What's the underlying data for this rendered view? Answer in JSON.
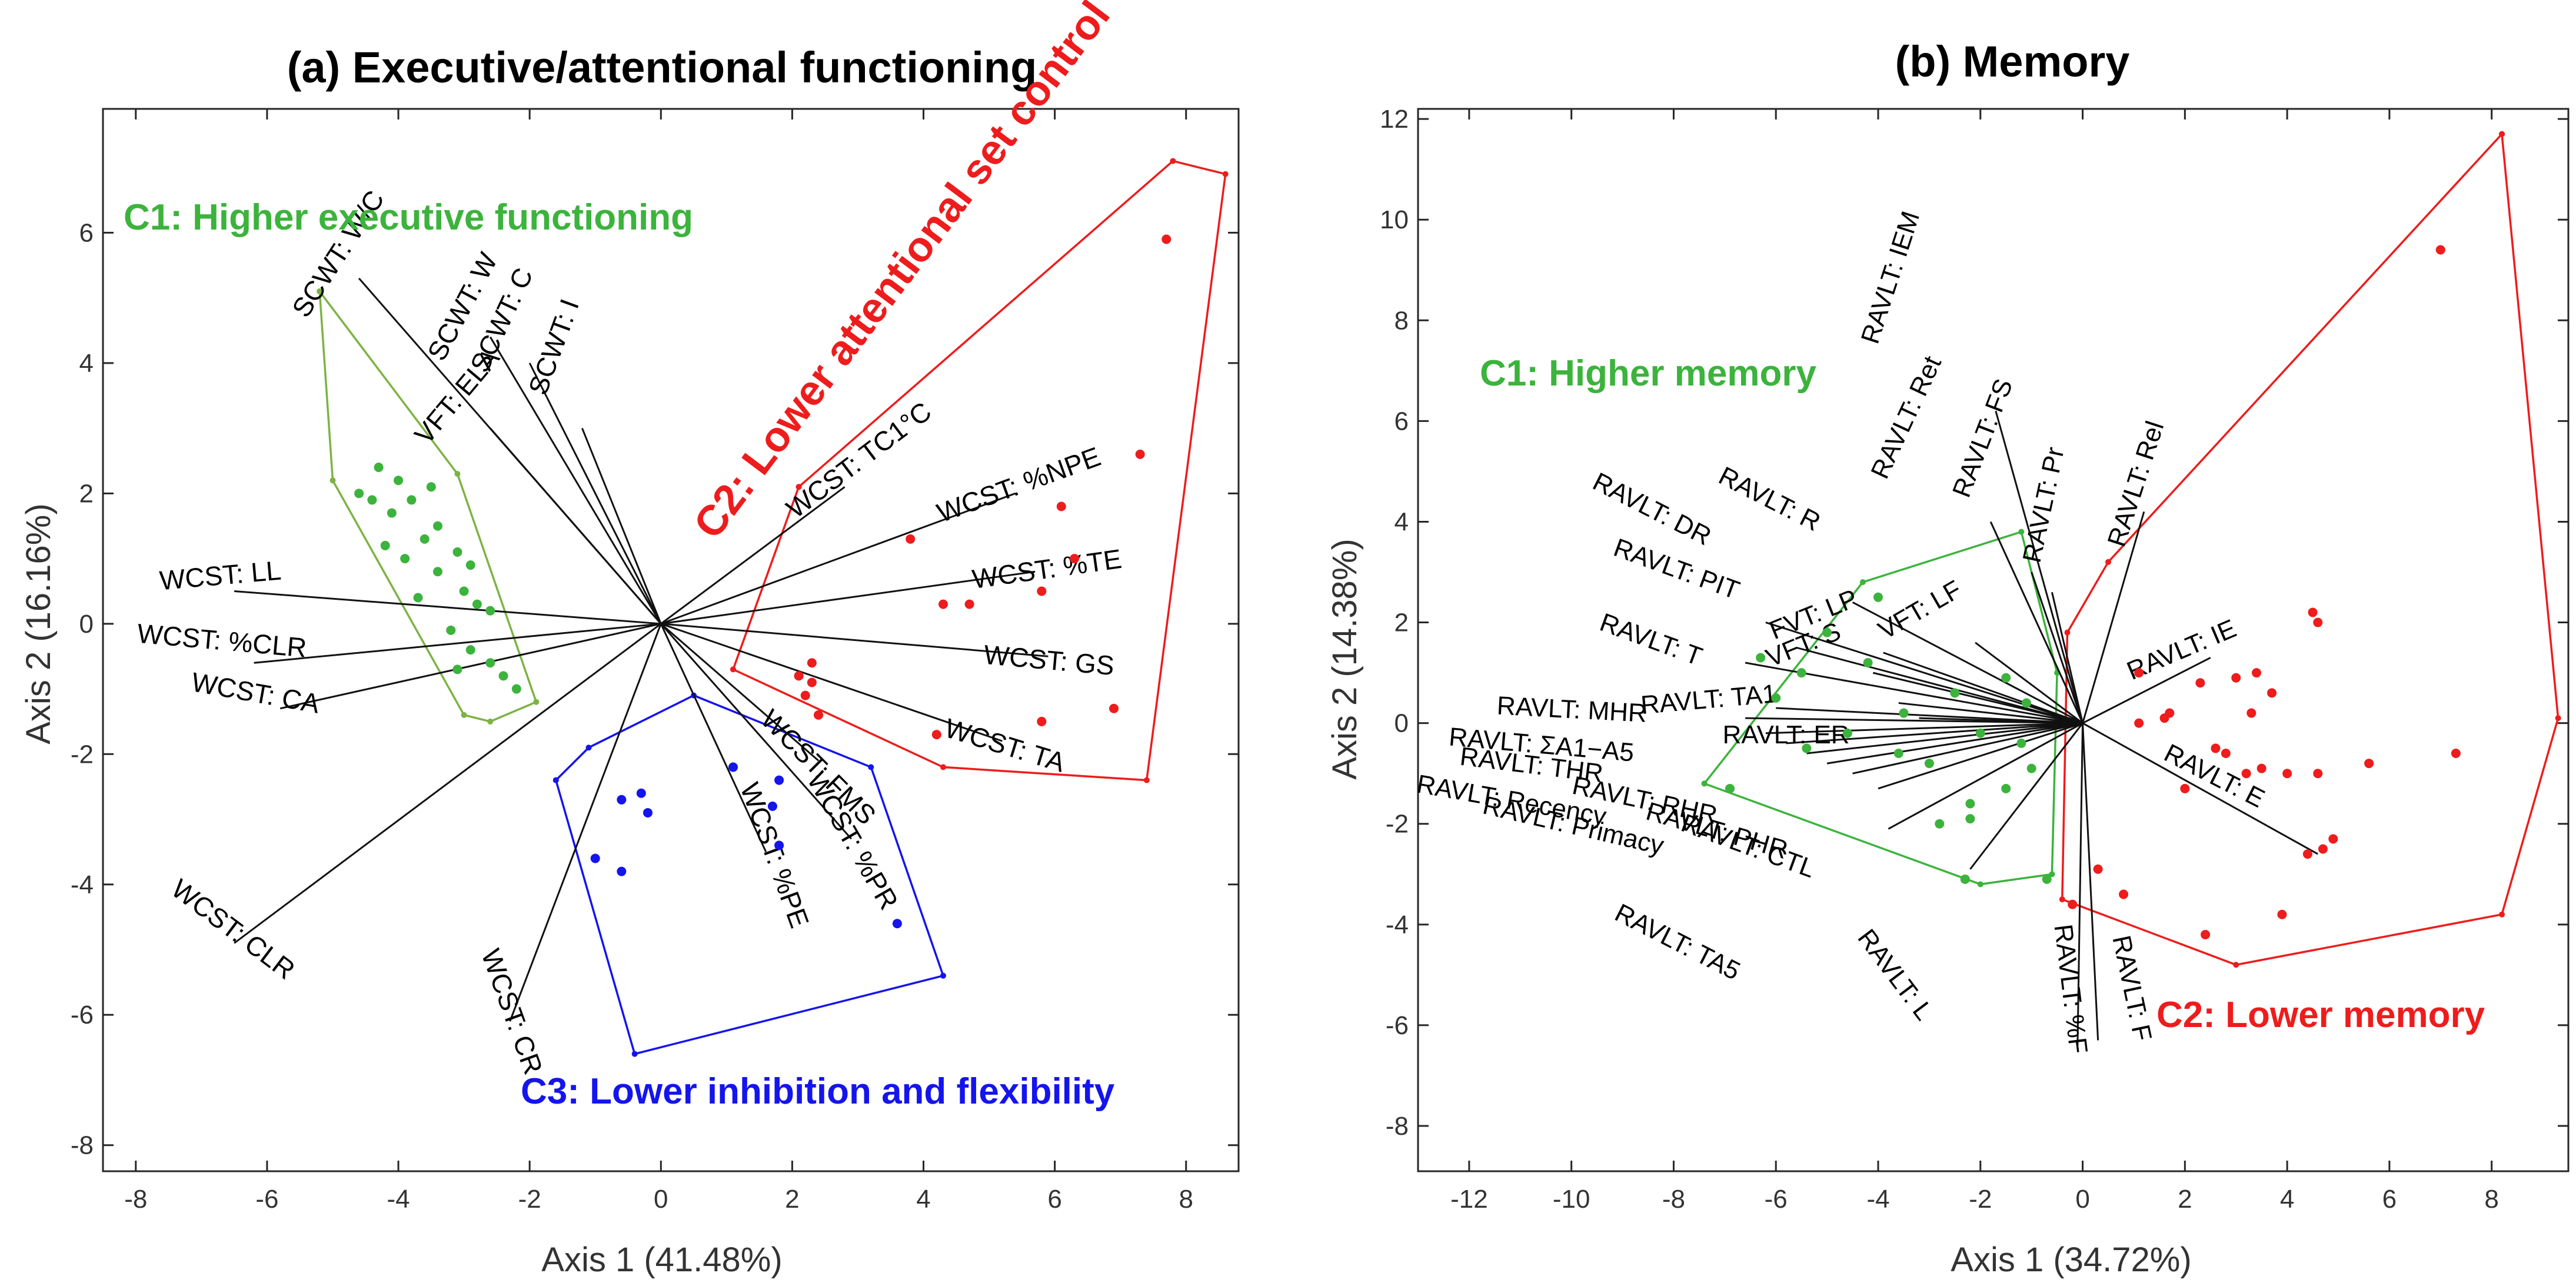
{
  "chart_data": [
    {
      "type": "scatter",
      "panel": "a",
      "title": "(a) Executive/attentional functioning",
      "xlabel": "Axis 1 (41.48%)",
      "ylabel": "Axis 2 (16.16%)",
      "xlim": [
        -8.5,
        8.8
      ],
      "ylim": [
        -8.4,
        7.9
      ],
      "xticks": [
        -8,
        -6,
        -4,
        -2,
        0,
        2,
        4,
        6,
        8
      ],
      "yticks": [
        -8,
        -6,
        -4,
        -2,
        0,
        2,
        4,
        6
      ],
      "grid": false,
      "origin": [
        0,
        0
      ],
      "vectors": [
        {
          "label": "SCWT: W/C",
          "x": -4.6,
          "y": 5.3,
          "lx": -4.8,
          "ly": 5.6,
          "angle": 57
        },
        {
          "label": "SCWT: C",
          "x": -2.0,
          "y": 4.0,
          "lx": -2.3,
          "ly": 4.6,
          "angle": 65
        },
        {
          "label": "SCWT: W",
          "x": -2.6,
          "y": 4.4,
          "lx": -2.9,
          "ly": 4.8,
          "angle": 62
        },
        {
          "label": "SCWT: I",
          "x": -1.2,
          "y": 3.0,
          "lx": -1.5,
          "ly": 4.2,
          "angle": 70
        },
        {
          "label": "VFT: ELA",
          "x": -2.6,
          "y": 3.0,
          "lx": -3.0,
          "ly": 3.4,
          "angle": 50
        },
        {
          "label": "WCST: LL",
          "x": -6.5,
          "y": 0.5,
          "lx": -6.7,
          "ly": 0.6,
          "angle": 5
        },
        {
          "label": "WCST: %CLR",
          "x": -6.2,
          "y": -0.6,
          "lx": -6.7,
          "ly": -0.4,
          "angle": -5
        },
        {
          "label": "WCST: CA",
          "x": -5.8,
          "y": -1.3,
          "lx": -6.2,
          "ly": -1.2,
          "angle": -10
        },
        {
          "label": "WCST: CLR",
          "x": -6.5,
          "y": -4.9,
          "lx": -6.6,
          "ly": -4.8,
          "angle": -37
        },
        {
          "label": "WCST: CR",
          "x": -2.3,
          "y": -6.1,
          "lx": -2.4,
          "ly": -6.0,
          "angle": -70
        },
        {
          "label": "WCST: TC1°C",
          "x": 2.8,
          "y": 2.1,
          "lx": 3.1,
          "ly": 2.4,
          "angle": 37
        },
        {
          "label": "WCST: %NPE",
          "x": 5.4,
          "y": 2.0,
          "lx": 5.5,
          "ly": 2.0,
          "angle": 20
        },
        {
          "label": "WCST: %TE",
          "x": 5.7,
          "y": 0.8,
          "lx": 5.9,
          "ly": 0.7,
          "angle": 8
        },
        {
          "label": "WCST: GS",
          "x": 5.9,
          "y": -0.5,
          "lx": 5.9,
          "ly": -0.7,
          "angle": -5
        },
        {
          "label": "WCST: TA",
          "x": 5.2,
          "y": -1.8,
          "lx": 5.2,
          "ly": -2.0,
          "angle": -17
        },
        {
          "label": "WCST: FMS",
          "x": 2.4,
          "y": -2.1,
          "lx": 2.3,
          "ly": -2.3,
          "angle": -45
        },
        {
          "label": "WCST: %PR",
          "x": 2.9,
          "y": -3.3,
          "lx": 2.8,
          "ly": -3.4,
          "angle": -60
        },
        {
          "label": "WCST: %PE",
          "x": 1.6,
          "y": -3.5,
          "lx": 1.6,
          "ly": -3.6,
          "angle": -70
        }
      ],
      "clusters": [
        {
          "name": "C1: Higher executive functioning",
          "color": "#3cb33c",
          "hull_color": "#7cb342",
          "hull": [
            [
              -5.2,
              5.1
            ],
            [
              -5.0,
              2.2
            ],
            [
              -3.0,
              -1.4
            ],
            [
              -2.6,
              -1.5
            ],
            [
              -1.9,
              -1.2
            ],
            [
              -3.1,
              2.3
            ],
            [
              -5.2,
              5.1
            ]
          ],
          "points": [
            [
              -4.6,
              2.0
            ],
            [
              -4.4,
              1.9
            ],
            [
              -4.1,
              1.7
            ],
            [
              -4.0,
              2.2
            ],
            [
              -3.8,
              1.9
            ],
            [
              -3.5,
              2.1
            ],
            [
              -4.2,
              1.2
            ],
            [
              -3.9,
              1.0
            ],
            [
              -3.6,
              1.3
            ],
            [
              -3.4,
              0.8
            ],
            [
              -3.1,
              1.1
            ],
            [
              -3.0,
              0.5
            ],
            [
              -2.8,
              0.3
            ],
            [
              -3.2,
              -0.1
            ],
            [
              -2.9,
              -0.4
            ],
            [
              -2.6,
              -0.6
            ],
            [
              -2.4,
              -0.8
            ],
            [
              -2.2,
              -1.0
            ],
            [
              -2.9,
              0.9
            ],
            [
              -2.6,
              0.2
            ],
            [
              -3.4,
              1.5
            ],
            [
              -4.3,
              2.4
            ],
            [
              -3.7,
              0.4
            ],
            [
              -3.1,
              -0.7
            ]
          ]
        },
        {
          "name": "C2: Lower attentional set control",
          "color": "#ee1c1c",
          "hull_color": "#ee1c1c",
          "hull": [
            [
              2.1,
              2.1
            ],
            [
              7.8,
              7.1
            ],
            [
              8.6,
              6.9
            ],
            [
              7.4,
              -2.4
            ],
            [
              4.3,
              -2.2
            ],
            [
              1.1,
              -0.7
            ],
            [
              2.1,
              2.1
            ]
          ],
          "points": [
            [
              7.7,
              5.9
            ],
            [
              7.3,
              2.6
            ],
            [
              6.1,
              1.8
            ],
            [
              6.3,
              1.0
            ],
            [
              5.8,
              0.5
            ],
            [
              4.7,
              0.3
            ],
            [
              4.3,
              0.3
            ],
            [
              3.8,
              1.3
            ],
            [
              2.3,
              -0.6
            ],
            [
              2.1,
              -0.8
            ],
            [
              2.2,
              -1.1
            ],
            [
              2.4,
              -1.4
            ],
            [
              6.9,
              -1.3
            ],
            [
              5.8,
              -1.5
            ],
            [
              4.2,
              -1.7
            ],
            [
              2.3,
              -0.9
            ]
          ]
        },
        {
          "name": "C3: Lower inhibition and flexibility",
          "color": "#1414ee",
          "hull_color": "#1414ee",
          "hull": [
            [
              -1.6,
              -2.4
            ],
            [
              -1.1,
              -1.9
            ],
            [
              0.5,
              -1.1
            ],
            [
              3.2,
              -2.2
            ],
            [
              4.3,
              -5.4
            ],
            [
              -0.4,
              -6.6
            ],
            [
              -1.6,
              -2.4
            ]
          ],
          "points": [
            [
              -0.3,
              -2.6
            ],
            [
              -0.6,
              -2.7
            ],
            [
              -0.2,
              -2.9
            ],
            [
              1.1,
              -2.2
            ],
            [
              1.8,
              -2.4
            ],
            [
              1.7,
              -2.8
            ],
            [
              1.8,
              -3.4
            ],
            [
              3.6,
              -4.6
            ],
            [
              -1.0,
              -3.6
            ],
            [
              -0.6,
              -3.8
            ]
          ]
        }
      ]
    },
    {
      "type": "scatter",
      "panel": "b",
      "title": "(b) Memory",
      "xlabel": "Axis 1 (34.72%)",
      "ylabel": "Axis 2 (14.38%)",
      "xlim": [
        -13,
        9.5
      ],
      "ylim": [
        -8.9,
        12.2
      ],
      "xticks": [
        -12,
        -10,
        -8,
        -6,
        -4,
        -2,
        0,
        2,
        4,
        6,
        8
      ],
      "yticks": [
        -8,
        -6,
        -4,
        -2,
        0,
        2,
        4,
        6,
        8,
        10,
        12
      ],
      "grid": false,
      "origin": [
        0,
        0
      ],
      "vectors": [
        {
          "label": "RAVLT: IEM",
          "x": -1.7,
          "y": 6.2,
          "lx": -3.6,
          "ly": 8.8,
          "angle": 72
        },
        {
          "label": "RAVLT: Ret",
          "x": -1.8,
          "y": 4.0,
          "lx": -3.3,
          "ly": 6.0,
          "angle": 65
        },
        {
          "label": "RAVLT: FS",
          "x": -1.0,
          "y": 3.0,
          "lx": -1.8,
          "ly": 5.6,
          "angle": 69
        },
        {
          "label": "RAVLT: Pr",
          "x": -0.6,
          "y": 2.6,
          "lx": -0.6,
          "ly": 4.3,
          "angle": 78
        },
        {
          "label": "RAVLT: Rel",
          "x": 1.2,
          "y": 4.2,
          "lx": 1.2,
          "ly": 4.7,
          "angle": 72
        },
        {
          "label": "RAVLT: IE",
          "x": 2.5,
          "y": 1.3,
          "lx": 2.0,
          "ly": 1.3,
          "angle": 23
        },
        {
          "label": "RAVLT: E",
          "x": 4.6,
          "y": -2.6,
          "lx": 2.5,
          "ly": -1.2,
          "angle": -27
        },
        {
          "label": "RAVLT: F",
          "x": 0.3,
          "y": -6.3,
          "lx": 0.8,
          "ly": -5.3,
          "angle": -78
        },
        {
          "label": "RAVLT: %F",
          "x": -0.1,
          "y": -6.4,
          "lx": -0.4,
          "ly": -5.3,
          "angle": -83
        },
        {
          "label": "RAVLT: L",
          "x": -2.2,
          "y": -2.9,
          "lx": -3.8,
          "ly": -5.1,
          "angle": -53
        },
        {
          "label": "RAVLT: TA5",
          "x": -3.8,
          "y": -2.1,
          "lx": -8.0,
          "ly": -4.5,
          "angle": -27
        },
        {
          "label": "RAVLT: CTL",
          "x": -4.0,
          "y": -1.3,
          "lx": -6.6,
          "ly": -2.6,
          "angle": -20
        },
        {
          "label": "RAVLT: PHR",
          "x": -4.5,
          "y": -1.0,
          "lx": -7.2,
          "ly": -2.3,
          "angle": -16
        },
        {
          "label": "RAVLT: Primacy",
          "x": -5.0,
          "y": -0.8,
          "lx": -10.0,
          "ly": -2.2,
          "angle": -13
        },
        {
          "label": "RAVLT: RHR",
          "x": -5.4,
          "y": -0.6,
          "lx": -8.6,
          "ly": -1.7,
          "angle": -12
        },
        {
          "label": "RAVLT: Recency",
          "x": -5.8,
          "y": -0.4,
          "lx": -11.2,
          "ly": -1.7,
          "angle": -10
        },
        {
          "label": "RAVLT: THR",
          "x": -6.2,
          "y": -0.2,
          "lx": -10.8,
          "ly": -1.0,
          "angle": -7
        },
        {
          "label": "RAVLT: ΣA1−A5",
          "x": -6.6,
          "y": 0.1,
          "lx": -10.6,
          "ly": -0.6,
          "angle": -5
        },
        {
          "label": "RAVLT: MHR",
          "x": -6.0,
          "y": 0.3,
          "lx": -10.0,
          "ly": 0.1,
          "angle": -3
        },
        {
          "label": "RAVLT: ER",
          "x": -3.2,
          "y": 0.1,
          "lx": -5.8,
          "ly": -0.4,
          "angle": 0
        },
        {
          "label": "RAVLT: TA1",
          "x": -3.6,
          "y": 0.4,
          "lx": -7.3,
          "ly": 0.3,
          "angle": 5
        },
        {
          "label": "RAVLT: T",
          "x": -6.6,
          "y": 1.2,
          "lx": -8.5,
          "ly": 1.5,
          "angle": -20
        },
        {
          "label": "RAVLT: PIT",
          "x": -5.6,
          "y": 1.5,
          "lx": -8.0,
          "ly": 2.9,
          "angle": -20
        },
        {
          "label": "RAVLT: DR",
          "x": -6.2,
          "y": 2.0,
          "lx": -8.5,
          "ly": 4.1,
          "angle": -27
        },
        {
          "label": "RAVLT: R",
          "x": -4.5,
          "y": 2.4,
          "lx": -6.2,
          "ly": 4.3,
          "angle": -27
        },
        {
          "label": "FVT: LP",
          "x": -3.9,
          "y": 1.4,
          "lx": -5.2,
          "ly": 2.0,
          "angle": 22
        },
        {
          "label": "VFT: S",
          "x": -4.1,
          "y": 1.0,
          "lx": -5.4,
          "ly": 1.4,
          "angle": 22
        },
        {
          "label": "VFT: LF",
          "x": -2.1,
          "y": 1.6,
          "lx": -3.1,
          "ly": 2.1,
          "angle": 30
        }
      ],
      "clusters": [
        {
          "name": "C1: Higher memory",
          "color": "#3cb33c",
          "hull_color": "#3cb33c",
          "hull": [
            [
              -7.4,
              -1.2
            ],
            [
              -4.3,
              2.8
            ],
            [
              -1.2,
              3.8
            ],
            [
              -0.5,
              1.0
            ],
            [
              -0.6,
              -3.0
            ],
            [
              -2.0,
              -3.2
            ],
            [
              -7.4,
              -1.2
            ]
          ],
          "points": [
            [
              -4.0,
              2.5
            ],
            [
              -5.0,
              1.8
            ],
            [
              -5.5,
              1.0
            ],
            [
              -6.0,
              0.5
            ],
            [
              -4.2,
              1.2
            ],
            [
              -3.5,
              0.2
            ],
            [
              -2.5,
              0.6
            ],
            [
              -2.0,
              -0.2
            ],
            [
              -3.0,
              -0.8
            ],
            [
              -3.6,
              -0.6
            ],
            [
              -4.6,
              -0.2
            ],
            [
              -5.4,
              -0.5
            ],
            [
              -2.2,
              -1.6
            ],
            [
              -2.8,
              -2.0
            ],
            [
              -1.5,
              -1.3
            ],
            [
              -1.0,
              -0.9
            ],
            [
              -1.5,
              0.9
            ],
            [
              -1.1,
              0.4
            ],
            [
              -6.3,
              1.3
            ],
            [
              -2.3,
              -3.1
            ],
            [
              -0.7,
              -3.1
            ],
            [
              -6.9,
              -1.3
            ],
            [
              -2.2,
              -1.9
            ],
            [
              -1.2,
              -0.4
            ]
          ]
        },
        {
          "name": "C2: Lower memory",
          "color": "#ee1c1c",
          "hull_color": "#ee1c1c",
          "hull": [
            [
              8.2,
              11.7
            ],
            [
              9.3,
              0.1
            ],
            [
              8.2,
              -3.8
            ],
            [
              3.0,
              -4.8
            ],
            [
              -0.4,
              -3.5
            ],
            [
              -0.3,
              1.8
            ],
            [
              0.5,
              3.2
            ],
            [
              8.2,
              11.7
            ]
          ],
          "points": [
            [
              7.0,
              9.4
            ],
            [
              4.5,
              2.2
            ],
            [
              4.6,
              2.0
            ],
            [
              1.1,
              1.0
            ],
            [
              2.3,
              0.8
            ],
            [
              3.0,
              0.9
            ],
            [
              3.4,
              1.0
            ],
            [
              3.7,
              0.6
            ],
            [
              3.3,
              0.2
            ],
            [
              1.7,
              0.2
            ],
            [
              1.6,
              0.1
            ],
            [
              1.1,
              0.0
            ],
            [
              2.6,
              -0.5
            ],
            [
              2.8,
              -0.6
            ],
            [
              3.5,
              -0.9
            ],
            [
              4.0,
              -1.0
            ],
            [
              4.6,
              -1.0
            ],
            [
              5.6,
              -0.8
            ],
            [
              7.3,
              -0.6
            ],
            [
              2.0,
              -1.3
            ],
            [
              3.2,
              -1.0
            ],
            [
              4.7,
              -2.5
            ],
            [
              4.9,
              -2.3
            ],
            [
              4.4,
              -2.6
            ],
            [
              3.9,
              -3.8
            ],
            [
              2.4,
              -4.2
            ],
            [
              0.8,
              -3.4
            ],
            [
              -0.2,
              -3.6
            ],
            [
              0.3,
              -2.9
            ]
          ]
        }
      ]
    }
  ]
}
